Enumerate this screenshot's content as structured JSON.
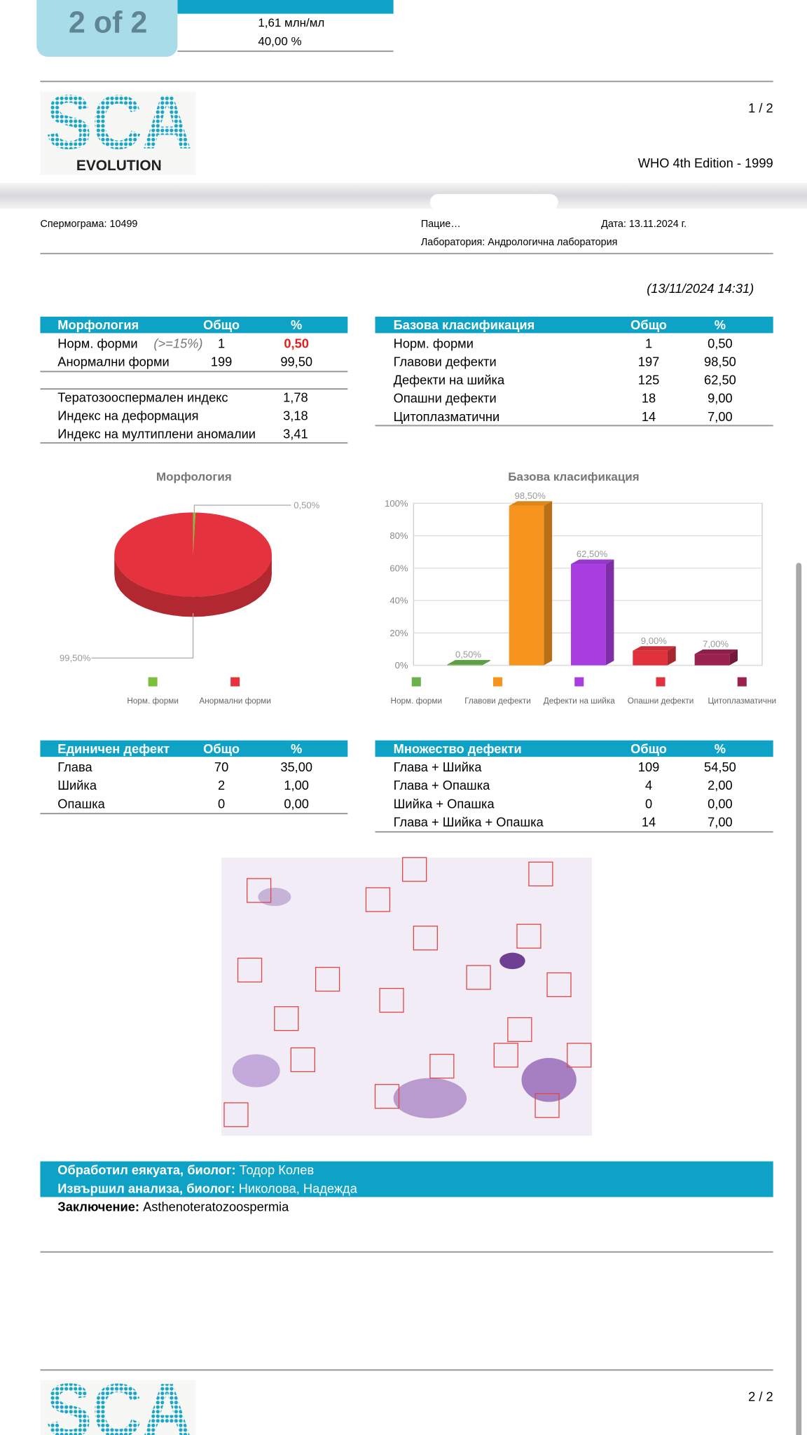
{
  "viewer": {
    "page_indicator": "2 of 2"
  },
  "top_table": {
    "rows": [
      "1,61 млн/мл",
      "40,00 %"
    ]
  },
  "header": {
    "logo": "SCA",
    "logo_subtitle": "EVOLUTION",
    "page": "1 / 2",
    "edition": "WHO 4th Edition - 1999"
  },
  "info": {
    "spermogram": "Спермограма: 10499",
    "patient": "Пацие…",
    "date": "Дата: 13.11.2024 г.",
    "lab": "Лаборатория: Андрологична лаборатория",
    "timestamp": "(13/11/2024  14:31)"
  },
  "morphology_table": {
    "header": [
      "Морфология",
      "Общо",
      "%"
    ],
    "rows": [
      {
        "label": "Норм. форми",
        "note": "(>=15%)",
        "total": "1",
        "percent": "0,50",
        "percent_color": "#e0201c"
      },
      {
        "label": "Анормални форми",
        "total": "199",
        "percent": "99,50"
      }
    ],
    "indices": [
      {
        "label": "Тератозооспермален индекс",
        "value": "1,78"
      },
      {
        "label": "Индекс на деформация",
        "value": "3,18"
      },
      {
        "label": "Индекс на мултиплени аномалии",
        "value": "3,41"
      }
    ]
  },
  "basic_table": {
    "header": [
      "Базова класификация",
      "Общо",
      "%"
    ],
    "rows": [
      {
        "label": "Норм. форми",
        "total": "1",
        "percent": "0,50"
      },
      {
        "label": "Главови дефекти",
        "total": "197",
        "percent": "98,50"
      },
      {
        "label": "Дефекти на шийка",
        "total": "125",
        "percent": "62,50"
      },
      {
        "label": "Опашни дефекти",
        "total": "18",
        "percent": "9,00"
      },
      {
        "label": "Цитоплазматични",
        "total": "14",
        "percent": "7,00"
      }
    ]
  },
  "chart_data": [
    {
      "type": "pie",
      "title": "Морфология",
      "categories": [
        "Норм. форми",
        "Анормални форми"
      ],
      "values": [
        0.5,
        99.5
      ],
      "value_labels": [
        "0,50%",
        "99,50%"
      ],
      "colors": [
        "#7cbf3a",
        "#e4333f"
      ]
    },
    {
      "type": "bar",
      "title": "Базова класификация",
      "categories": [
        "Норм. форми",
        "Главови дефекти",
        "Дефекти на шийка",
        "Опашни дефекти",
        "Цитоплазматични"
      ],
      "values": [
        0.5,
        98.5,
        62.5,
        9,
        7
      ],
      "value_labels": [
        "0,50%",
        "98,50%",
        "62,50%",
        "9,00%",
        "7,00%"
      ],
      "colors": [
        "#6ab04c",
        "#f7941d",
        "#a83ee0",
        "#e0323c",
        "#9b2150"
      ],
      "ylim": [
        0,
        100
      ],
      "yticks": [
        {
          "value": 0,
          "label": "0%"
        },
        {
          "value": 20,
          "label": "20%"
        },
        {
          "value": 40,
          "label": "40%"
        },
        {
          "value": 60,
          "label": "60%"
        },
        {
          "value": 80,
          "label": "80%"
        },
        {
          "value": 100,
          "label": "100%"
        }
      ],
      "grid": true
    }
  ],
  "single_defect_table": {
    "header": [
      "Единичен дефект",
      "Общо",
      "%"
    ],
    "rows": [
      {
        "label": "Глава",
        "total": "70",
        "percent": "35,00"
      },
      {
        "label": "Шийка",
        "total": "2",
        "percent": "1,00"
      },
      {
        "label": "Опашка",
        "total": "0",
        "percent": "0,00"
      }
    ]
  },
  "multiple_defects_table": {
    "header": [
      "Множество дефекти",
      "Общо",
      "%"
    ],
    "rows": [
      {
        "label": "Глава + Шийка",
        "total": "109",
        "percent": "54,50"
      },
      {
        "label": "Глава + Опашка",
        "total": "4",
        "percent": "2,00"
      },
      {
        "label": "Шийка + Опашка",
        "total": "0",
        "percent": "0,00"
      },
      {
        "label": "Глава + Шийка + Опашка",
        "total": "14",
        "percent": "7,00"
      }
    ]
  },
  "footer": {
    "processed_label": "Обработил еякуата, биолог:",
    "processed_name": "Тодор Колев",
    "analyzed_label": "Извършил анализа, биолог:",
    "analyzed_name": "Николова, Надежда",
    "conclusion_label": "Заключение:",
    "conclusion": "Asthenoteratozoospermia"
  },
  "page_two": {
    "page": "2 / 2"
  }
}
